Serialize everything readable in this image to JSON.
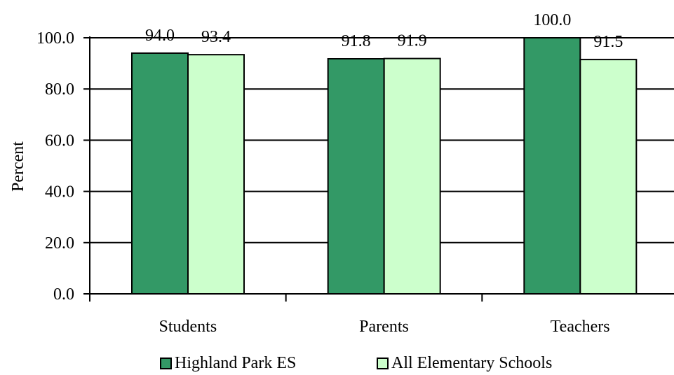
{
  "chart_data": {
    "type": "bar",
    "title": "",
    "xlabel": "",
    "ylabel": "Percent",
    "ylim": [
      0,
      100
    ],
    "yticks": [
      "0.0",
      "20.0",
      "40.0",
      "60.0",
      "80.0",
      "100.0"
    ],
    "categories": [
      "Students",
      "Parents",
      "Teachers"
    ],
    "series": [
      {
        "name": "Highland Park ES",
        "color": "#339966",
        "values": [
          94.0,
          91.8,
          100.0
        ],
        "labels": [
          "94.0",
          "91.8",
          "100.0"
        ]
      },
      {
        "name": "All Elementary Schools",
        "color": "#CCFFCC",
        "values": [
          93.4,
          91.9,
          91.5
        ],
        "labels": [
          "93.4",
          "91.9",
          "91.5"
        ]
      }
    ],
    "grid": true,
    "legend_position": "bottom"
  }
}
